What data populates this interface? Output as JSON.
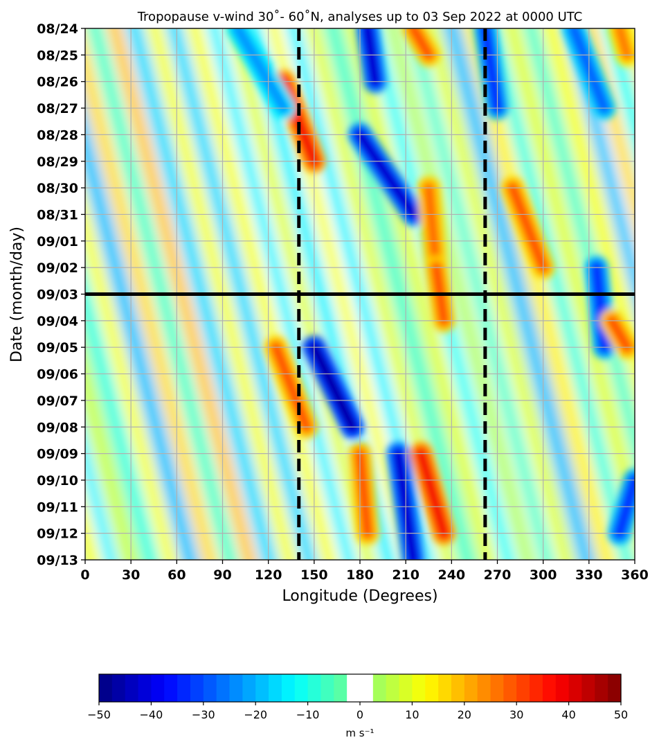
{
  "chart_data": {
    "type": "heatmap",
    "title": "Tropopause v-wind 30˚- 60˚N, analyses up to 03 Sep 2022 at 0000 UTC",
    "xlabel": "Longitude (Degrees)",
    "ylabel": "Date (month/day)",
    "xlim": [
      0,
      360
    ],
    "x_ticks": [
      0,
      30,
      60,
      90,
      120,
      150,
      180,
      210,
      240,
      270,
      300,
      330,
      360
    ],
    "x_tick_labels": [
      "0",
      "30",
      "60",
      "90",
      "120",
      "150",
      "180",
      "210",
      "240",
      "270",
      "300",
      "330",
      "360"
    ],
    "y_tick_labels": [
      "08/24",
      "08/25",
      "08/26",
      "08/27",
      "08/28",
      "08/29",
      "08/30",
      "08/31",
      "09/01",
      "09/02",
      "09/03",
      "09/04",
      "09/05",
      "09/06",
      "09/07",
      "09/08",
      "09/09",
      "09/10",
      "09/11",
      "09/12",
      "09/13"
    ],
    "grid": true,
    "analysis_line_date": "09/03",
    "dashed_longitudes": [
      140,
      262
    ],
    "colorbar": {
      "label": "m s⁻¹",
      "vmin": -50,
      "vmax": 50,
      "levels": 40,
      "white_band": [
        -2.5,
        2.5
      ],
      "ticks": [
        -50,
        -40,
        -30,
        -20,
        -10,
        0,
        10,
        20,
        30,
        40,
        50
      ],
      "tick_labels": [
        "−50",
        "−40",
        "−30",
        "−20",
        "−10",
        "0",
        "10",
        "20",
        "30",
        "40",
        "50"
      ],
      "colormap": "jet"
    },
    "features": [
      {
        "lon_start": 130,
        "date_start": "08/26",
        "lon_end": 150,
        "date_end": "08/29",
        "value": 38
      },
      {
        "lon_start": 185,
        "date_start": "08/24",
        "lon_end": 190,
        "date_end": "08/26",
        "value": -45
      },
      {
        "lon_start": 180,
        "date_start": "08/28",
        "lon_end": 215,
        "date_end": "08/31",
        "value": -45
      },
      {
        "lon_start": 215,
        "date_start": "08/24",
        "lon_end": 225,
        "date_end": "08/25",
        "value": 30
      },
      {
        "lon_start": 225,
        "date_start": "08/30",
        "lon_end": 230,
        "date_end": "09/02",
        "value": 28
      },
      {
        "lon_start": 230,
        "date_start": "09/02",
        "lon_end": 235,
        "date_end": "09/04",
        "value": 30
      },
      {
        "lon_start": 125,
        "date_start": "09/05",
        "lon_end": 145,
        "date_end": "09/08",
        "value": 30
      },
      {
        "lon_start": 150,
        "date_start": "09/05",
        "lon_end": 175,
        "date_end": "09/08",
        "value": -50
      },
      {
        "lon_start": 180,
        "date_start": "09/09",
        "lon_end": 185,
        "date_end": "09/12",
        "value": 30
      },
      {
        "lon_start": 205,
        "date_start": "09/09",
        "lon_end": 215,
        "date_end": "09/13",
        "value": -45
      },
      {
        "lon_start": 220,
        "date_start": "09/09",
        "lon_end": 235,
        "date_end": "09/12",
        "value": 38
      },
      {
        "lon_start": 280,
        "date_start": "08/30",
        "lon_end": 300,
        "date_end": "09/02",
        "value": 30
      },
      {
        "lon_start": 335,
        "date_start": "09/02",
        "lon_end": 340,
        "date_end": "09/05",
        "value": -35
      },
      {
        "lon_start": 345,
        "date_start": "09/04",
        "lon_end": 355,
        "date_end": "09/05",
        "value": 30
      },
      {
        "lon_start": 350,
        "date_start": "08/24",
        "lon_end": 355,
        "date_end": "08/25",
        "value": 25
      },
      {
        "lon_start": 100,
        "date_start": "08/24",
        "lon_end": 130,
        "date_end": "08/27",
        "value": -25
      },
      {
        "lon_start": 262,
        "date_start": "08/24",
        "lon_end": 270,
        "date_end": "08/27",
        "value": -35
      },
      {
        "lon_start": 320,
        "date_start": "08/24",
        "lon_end": 340,
        "date_end": "08/27",
        "value": -30
      },
      {
        "lon_start": 360,
        "date_start": "09/10",
        "lon_end": 350,
        "date_end": "09/12",
        "value": -35
      }
    ]
  }
}
